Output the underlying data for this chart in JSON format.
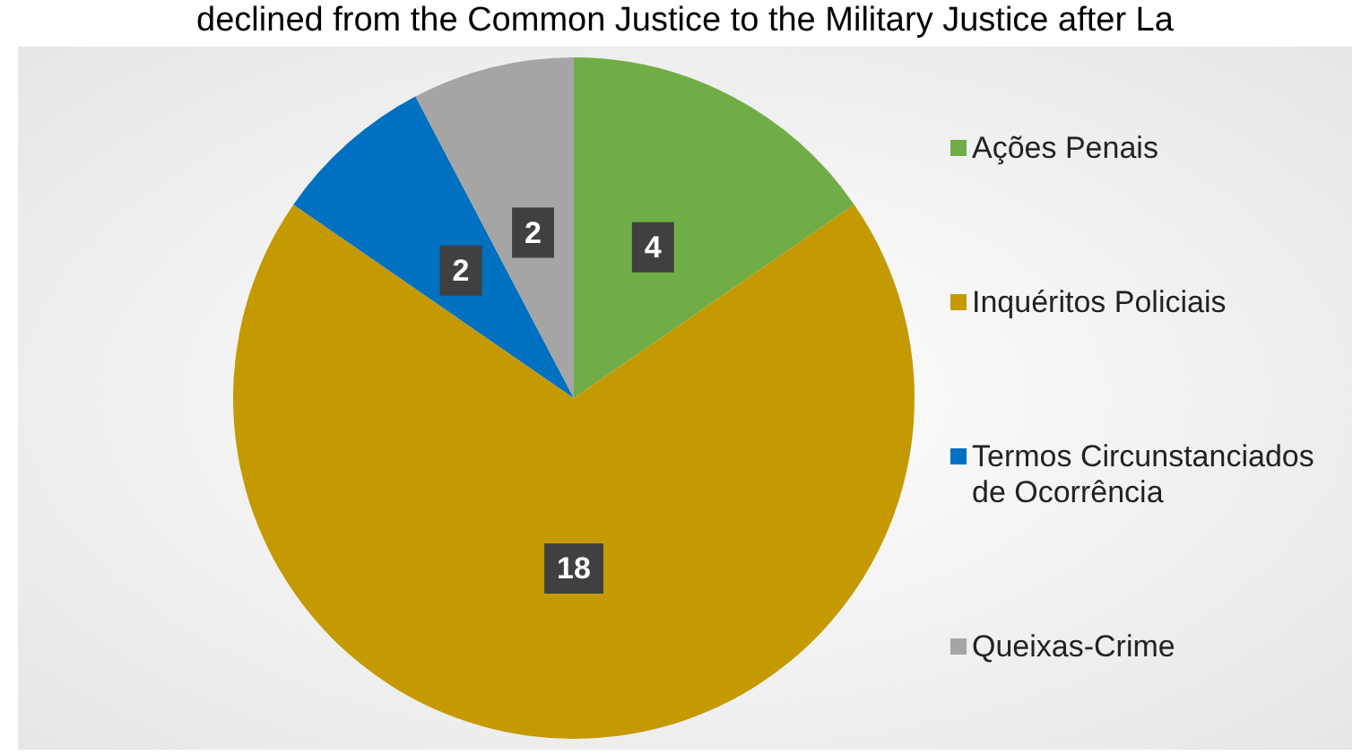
{
  "chart_data": {
    "type": "pie",
    "title": "declined from the Common Justice to the Military Justice after La",
    "categories": [
      "Ações Penais",
      "Inquéritos Policiais",
      "Termos Circunstanciados de Ocorrência",
      "Queixas-Crime"
    ],
    "values": [
      4,
      18,
      2,
      2
    ],
    "colors": [
      "#70ad47",
      "#c49a00",
      "#0070c0",
      "#a5a5a5"
    ],
    "data_labels": true,
    "legend": "right"
  }
}
